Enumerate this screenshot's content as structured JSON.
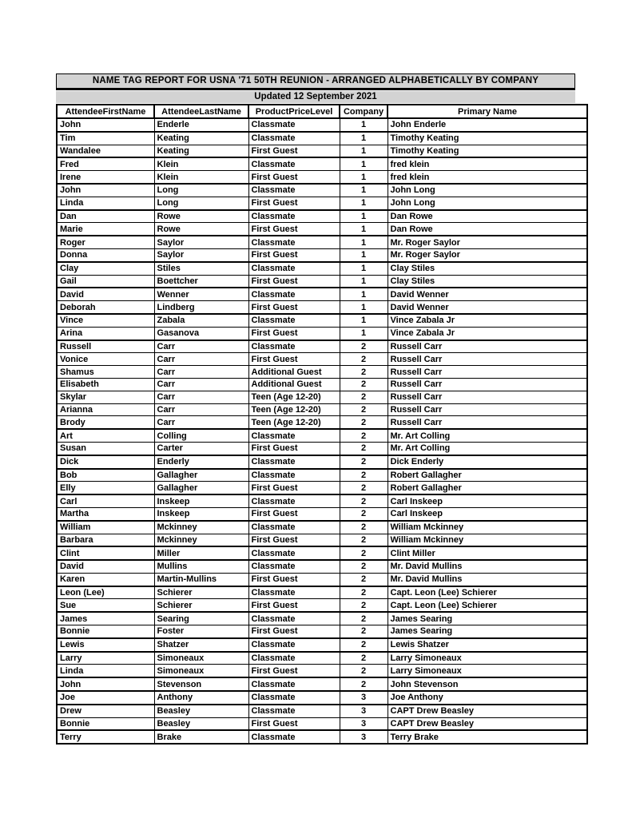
{
  "report": {
    "title": "NAME TAG REPORT FOR USNA '71 50TH REUNION - ARRANGED ALPHABETICALLY BY COMPANY",
    "updated": "Updated 12 September 2021"
  },
  "colors": {
    "band_bg": "#d3d3d3",
    "border": "#000000",
    "text": "#000000"
  },
  "table": {
    "columns": [
      "AttendeeFirstName",
      "AttendeeLastName",
      "ProductPriceLevel",
      "Company",
      "Primary Name"
    ],
    "rows": [
      [
        "John",
        "Enderle",
        "Classmate",
        "1",
        "John Enderle"
      ],
      [
        "Tim",
        "Keating",
        "Classmate",
        "1",
        "Timothy Keating"
      ],
      [
        "Wandalee",
        "Keating",
        "First Guest",
        "1",
        "Timothy Keating"
      ],
      [
        "Fred",
        "Klein",
        "Classmate",
        "1",
        "fred klein"
      ],
      [
        "Irene",
        "Klein",
        "First Guest",
        "1",
        "fred klein"
      ],
      [
        "John",
        "Long",
        "Classmate",
        "1",
        "John Long"
      ],
      [
        "Linda",
        "Long",
        "First Guest",
        "1",
        "John Long"
      ],
      [
        "Dan",
        "Rowe",
        "Classmate",
        "1",
        "Dan Rowe"
      ],
      [
        "Marie",
        "Rowe",
        "First Guest",
        "1",
        "Dan Rowe"
      ],
      [
        "Roger",
        "Saylor",
        "Classmate",
        "1",
        "Mr. Roger Saylor"
      ],
      [
        "Donna",
        "Saylor",
        "First Guest",
        "1",
        "Mr. Roger Saylor"
      ],
      [
        "Clay",
        "Stiles",
        "Classmate",
        "1",
        "Clay Stiles"
      ],
      [
        "Gail",
        "Boettcher",
        "First Guest",
        "1",
        "Clay Stiles"
      ],
      [
        "David",
        "Wenner",
        "Classmate",
        "1",
        "David Wenner"
      ],
      [
        "Deborah",
        "Lindberg",
        "First Guest",
        "1",
        "David Wenner"
      ],
      [
        "Vince",
        "Zabala",
        "Classmate",
        "1",
        "Vince Zabala Jr"
      ],
      [
        "Arina",
        "Gasanova",
        "First Guest",
        "1",
        "Vince Zabala Jr"
      ],
      [
        "Russell",
        "Carr",
        "Classmate",
        "2",
        "Russell Carr"
      ],
      [
        "Vonice",
        "Carr",
        "First Guest",
        "2",
        "Russell Carr"
      ],
      [
        "Shamus",
        "Carr",
        "Additional Guest",
        "2",
        "Russell Carr"
      ],
      [
        "Elisabeth",
        "Carr",
        "Additional Guest",
        "2",
        "Russell Carr"
      ],
      [
        "Skylar",
        "Carr",
        "Teen (Age 12-20)",
        "2",
        "Russell Carr"
      ],
      [
        "Arianna",
        "Carr",
        "Teen (Age 12-20)",
        "2",
        "Russell Carr"
      ],
      [
        "Brody",
        "Carr",
        "Teen (Age 12-20)",
        "2",
        "Russell Carr"
      ],
      [
        "Art",
        "Colling",
        "Classmate",
        "2",
        "Mr. Art Colling"
      ],
      [
        "Susan",
        "Carter",
        "First Guest",
        "2",
        "Mr. Art Colling"
      ],
      [
        "Dick",
        "Enderly",
        "Classmate",
        "2",
        "Dick Enderly"
      ],
      [
        "Bob",
        "Gallagher",
        "Classmate",
        "2",
        "Robert Gallagher"
      ],
      [
        "Elly",
        "Gallagher",
        "First Guest",
        "2",
        "Robert Gallagher"
      ],
      [
        "Carl",
        "Inskeep",
        "Classmate",
        "2",
        "Carl Inskeep"
      ],
      [
        "Martha",
        "Inskeep",
        "First Guest",
        "2",
        "Carl Inskeep"
      ],
      [
        "William",
        "Mckinney",
        "Classmate",
        "2",
        "William Mckinney"
      ],
      [
        "Barbara",
        "Mckinney",
        "First Guest",
        "2",
        "William Mckinney"
      ],
      [
        "Clint",
        "Miller",
        "Classmate",
        "2",
        "Clint Miller"
      ],
      [
        "David",
        "Mullins",
        "Classmate",
        "2",
        "Mr. David Mullins"
      ],
      [
        "Karen",
        "Martin-Mullins",
        "First Guest",
        "2",
        "Mr. David Mullins"
      ],
      [
        "Leon (Lee)",
        "Schierer",
        "Classmate",
        "2",
        "Capt. Leon (Lee) Schierer"
      ],
      [
        "Sue",
        "Schierer",
        "First Guest",
        "2",
        "Capt. Leon (Lee) Schierer"
      ],
      [
        "James",
        "Searing",
        "Classmate",
        "2",
        "James Searing"
      ],
      [
        "Bonnie",
        "Foster",
        "First Guest",
        "2",
        "James Searing"
      ],
      [
        "Lewis",
        "Shatzer",
        "Classmate",
        "2",
        "Lewis Shatzer"
      ],
      [
        "Larry",
        "Simoneaux",
        "Classmate",
        "2",
        "Larry Simoneaux"
      ],
      [
        "Linda",
        "Simoneaux",
        "First Guest",
        "2",
        "Larry Simoneaux"
      ],
      [
        "John",
        "Stevenson",
        "Classmate",
        "2",
        "John Stevenson"
      ],
      [
        "Joe",
        "Anthony",
        "Classmate",
        "3",
        "Joe Anthony"
      ],
      [
        "Drew",
        "Beasley",
        "Classmate",
        "3",
        "CAPT Drew Beasley"
      ],
      [
        "Bonnie",
        "Beasley",
        "First Guest",
        "3",
        "CAPT Drew Beasley"
      ],
      [
        "Terry",
        "Brake",
        "Classmate",
        "3",
        "Terry Brake"
      ]
    ]
  }
}
